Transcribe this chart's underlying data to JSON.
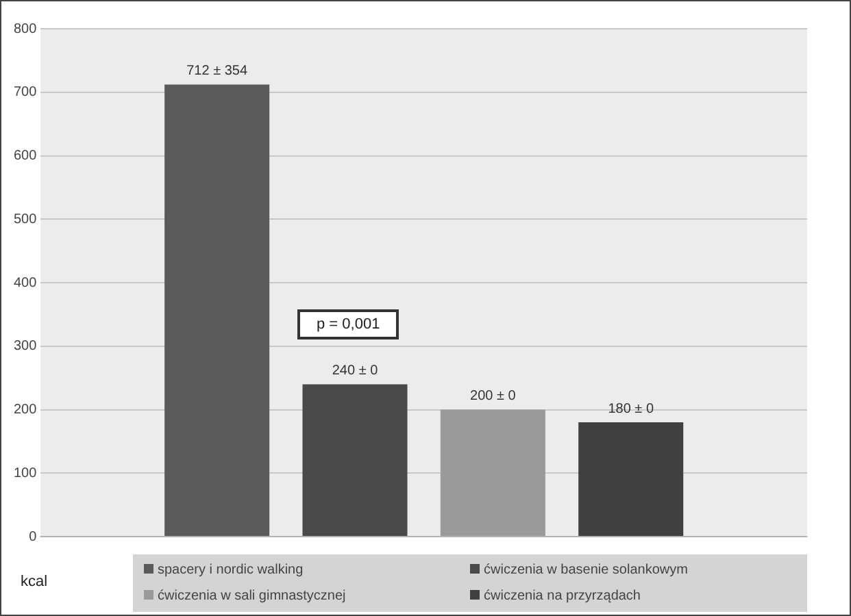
{
  "chart_data": {
    "type": "bar",
    "ylabel": "kcal",
    "categories": [
      null
    ],
    "series": [
      {
        "name": "spacery i nordic walking",
        "color": "#5a5a5a",
        "values": [
          712
        ],
        "value_labels": [
          "712 ± 354"
        ]
      },
      {
        "name": "ćwiczenia w basenie solankowym",
        "color": "#4a4a4a",
        "values": [
          240
        ],
        "value_labels": [
          "240 ± 0"
        ]
      },
      {
        "name": "ćwiczenia w sali gimnastycznej",
        "color": "#9a9a9a",
        "values": [
          200
        ],
        "value_labels": [
          "200 ± 0"
        ]
      },
      {
        "name": "ćwiczenia na przyrządach",
        "color": "#404040",
        "values": [
          180
        ],
        "value_labels": [
          "180 ± 0"
        ]
      }
    ],
    "ylim": [
      0,
      800
    ],
    "yticks": [
      0,
      100,
      200,
      300,
      400,
      500,
      600,
      700,
      800
    ],
    "grid": "y",
    "legend": "bottom",
    "annotations": [
      "p = 0,001"
    ]
  }
}
